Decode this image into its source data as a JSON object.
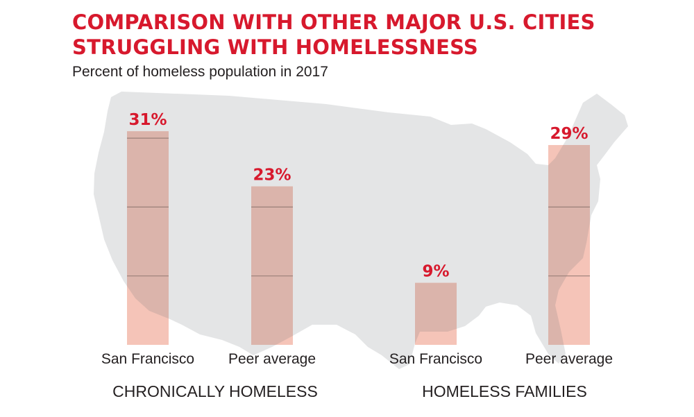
{
  "title_lines": [
    "COMPARISON WITH OTHER MAJOR U.S. CITIES",
    "STRUGGLING WITH HOMELESSNESS"
  ],
  "subtitle": "Percent of homeless population in 2017",
  "colors": {
    "accent": "#d7192d",
    "bar": "#f5c4b8",
    "bar_over_map": "#dbb4ab",
    "grid": "#9a7f79",
    "map": "#e4e5e6",
    "text": "#231f20"
  },
  "chart_data": {
    "type": "bar",
    "title": "COMPARISON WITH OTHER MAJOR U.S. CITIES STRUGGLING WITH HOMELESSNESS",
    "subtitle": "Percent of homeless population in 2017",
    "ylim": [
      0,
      30
    ],
    "grid": true,
    "gridlines": [
      10,
      20,
      30
    ],
    "groups": [
      {
        "name": "CHRONICALLY HOMELESS",
        "categories": [
          "San Francisco",
          "Peer average"
        ],
        "values": [
          31,
          23
        ],
        "labels": [
          "31%",
          "23%"
        ]
      },
      {
        "name": "HOMELESS FAMILIES",
        "categories": [
          "San Francisco",
          "Peer average"
        ],
        "values": [
          9,
          29
        ],
        "labels": [
          "9%",
          "29%"
        ]
      }
    ]
  }
}
